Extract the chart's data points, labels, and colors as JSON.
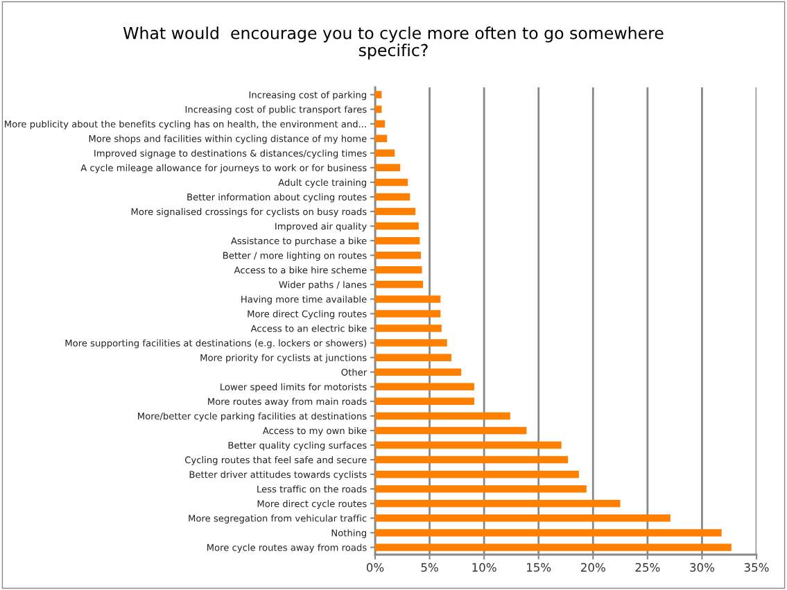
{
  "chart_data": {
    "type": "bar",
    "orientation": "horizontal",
    "title": "What would  encourage you to cycle more often to go somewhere\nspecific?",
    "categories": [
      "Increasing cost of parking",
      "Increasing cost of public transport fares",
      "More publicity about the benefits cycling has on health, the environment and...",
      "More shops and facilities within cycling distance of my home",
      "Improved signage to destinations & distances/cycling times",
      "A cycle mileage allowance for journeys to work or for business",
      "Adult cycle training",
      "Better information about cycling routes",
      "More signalised crossings for cyclists on busy roads",
      "Improved air quality",
      "Assistance to purchase a bike",
      "Better / more lighting on routes",
      "Access to a bike hire scheme",
      "Wider paths / lanes",
      "Having more time available",
      "More direct Cycling routes",
      "Access to an electric bike",
      "More supporting facilities at destinations (e.g. lockers or showers)",
      "More priority for cyclists at junctions",
      "Other",
      "Lower speed limits for motorists",
      "More routes away from main roads",
      "More/better cycle parking facilities at destinations",
      "Access to my own bike",
      "Better quality cycling surfaces",
      "Cycling routes that feel safe and secure",
      "Better driver attitudes towards cyclists",
      "Less traffic on the roads",
      "More direct cycle routes",
      "More segregation from vehicular traffic",
      "Nothing",
      "More cycle routes away from roads"
    ],
    "values": [
      0.6,
      0.6,
      0.9,
      1.1,
      1.8,
      2.3,
      3.0,
      3.2,
      3.7,
      4.0,
      4.1,
      4.2,
      4.3,
      4.4,
      6.0,
      6.0,
      6.1,
      6.6,
      7.0,
      7.9,
      9.1,
      9.1,
      12.4,
      13.9,
      17.1,
      17.7,
      18.7,
      19.4,
      22.5,
      27.1,
      31.8,
      32.7
    ],
    "color": "#ff7f00",
    "xlim": [
      0,
      35
    ],
    "xticks": [
      {
        "value": 0,
        "label": "0%"
      },
      {
        "value": 5,
        "label": "5%"
      },
      {
        "value": 10,
        "label": "10%"
      },
      {
        "value": 15,
        "label": "15%"
      },
      {
        "value": 20,
        "label": "20%"
      },
      {
        "value": 25,
        "label": "25%"
      },
      {
        "value": 30,
        "label": "30%"
      },
      {
        "value": 35,
        "label": "35%"
      }
    ],
    "grid": "x"
  }
}
